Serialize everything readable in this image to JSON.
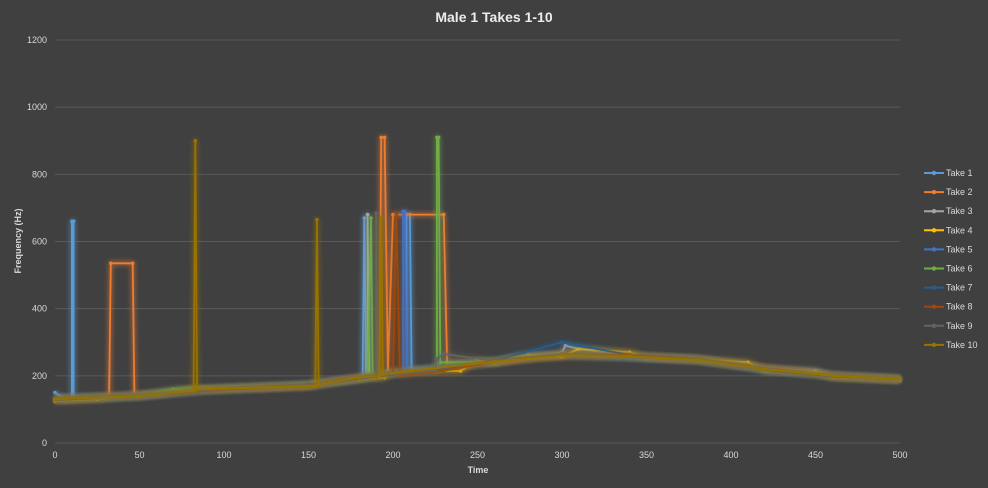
{
  "chart_data": {
    "type": "line",
    "title": "Male 1 Takes 1-10",
    "xlabel": "Time",
    "ylabel": "Frequency (Hz)",
    "xlim": [
      0,
      500
    ],
    "ylim": [
      0,
      1200
    ],
    "xticks": [
      "0",
      "50",
      "100",
      "150",
      "200",
      "250",
      "300",
      "350",
      "400",
      "450",
      "500"
    ],
    "yticks": [
      "0",
      "200",
      "400",
      "600",
      "800",
      "1000",
      "1200"
    ],
    "grid": "horizontal",
    "legend_position": "right",
    "series": [
      {
        "name": "Take 1",
        "color": "#5b9bd5",
        "points": [
          [
            0,
            150
          ],
          [
            5,
            135
          ],
          [
            10,
            132
          ],
          [
            10,
            660
          ],
          [
            11,
            660
          ],
          [
            11,
            135
          ],
          [
            30,
            135
          ],
          [
            50,
            140
          ],
          [
            80,
            158
          ],
          [
            120,
            165
          ],
          [
            150,
            175
          ],
          [
            153,
            180
          ],
          [
            175,
            190
          ],
          [
            182,
            195
          ],
          [
            182,
            200
          ],
          [
            183,
            670
          ],
          [
            184,
            200
          ],
          [
            200,
            210
          ],
          [
            208,
            210
          ],
          [
            208,
            680
          ],
          [
            210,
            680
          ],
          [
            211,
            215
          ],
          [
            260,
            240
          ],
          [
            280,
            260
          ],
          [
            300,
            262
          ],
          [
            340,
            255
          ],
          [
            380,
            250
          ],
          [
            420,
            220
          ],
          [
            450,
            215
          ],
          [
            460,
            200
          ],
          [
            500,
            190
          ]
        ]
      },
      {
        "name": "Take 2",
        "color": "#ed7d31",
        "points": [
          [
            0,
            130
          ],
          [
            20,
            135
          ],
          [
            32,
            140
          ],
          [
            33,
            535
          ],
          [
            46,
            535
          ],
          [
            47,
            140
          ],
          [
            80,
            155
          ],
          [
            150,
            170
          ],
          [
            180,
            195
          ],
          [
            192,
            200
          ],
          [
            193,
            910
          ],
          [
            195,
            910
          ],
          [
            197,
            215
          ],
          [
            200,
            680
          ],
          [
            230,
            680
          ],
          [
            232,
            240
          ],
          [
            260,
            240
          ],
          [
            300,
            260
          ],
          [
            340,
            260
          ],
          [
            380,
            250
          ],
          [
            420,
            225
          ],
          [
            450,
            212
          ],
          [
            460,
            200
          ],
          [
            500,
            190
          ]
        ]
      },
      {
        "name": "Take 3",
        "color": "#a5a5a5",
        "points": [
          [
            0,
            132
          ],
          [
            50,
            142
          ],
          [
            100,
            162
          ],
          [
            150,
            172
          ],
          [
            180,
            190
          ],
          [
            185,
            200
          ],
          [
            185,
            680
          ],
          [
            186,
            200
          ],
          [
            210,
            215
          ],
          [
            260,
            240
          ],
          [
            300,
            270
          ],
          [
            302,
            290
          ],
          [
            310,
            280
          ],
          [
            340,
            260
          ],
          [
            380,
            245
          ],
          [
            420,
            220
          ],
          [
            460,
            200
          ],
          [
            500,
            190
          ]
        ]
      },
      {
        "name": "Take 4",
        "color": "#ffc000",
        "points": [
          [
            0,
            125
          ],
          [
            25,
            130
          ],
          [
            40,
            138
          ],
          [
            60,
            145
          ],
          [
            80,
            160
          ],
          [
            100,
            162
          ],
          [
            150,
            170
          ],
          [
            160,
            180
          ],
          [
            180,
            190
          ],
          [
            195,
            195
          ],
          [
            200,
            212
          ],
          [
            240,
            215
          ],
          [
            250,
            245
          ],
          [
            260,
            240
          ],
          [
            270,
            255
          ],
          [
            280,
            262
          ],
          [
            300,
            258
          ],
          [
            310,
            280
          ],
          [
            340,
            270
          ],
          [
            350,
            255
          ],
          [
            380,
            250
          ],
          [
            410,
            240
          ],
          [
            420,
            215
          ],
          [
            450,
            210
          ],
          [
            460,
            195
          ],
          [
            500,
            188
          ]
        ]
      },
      {
        "name": "Take 5",
        "color": "#4472c4",
        "points": [
          [
            0,
            130
          ],
          [
            50,
            140
          ],
          [
            100,
            162
          ],
          [
            150,
            170
          ],
          [
            190,
            200
          ],
          [
            200,
            215
          ],
          [
            206,
            215
          ],
          [
            206,
            690
          ],
          [
            207,
            690
          ],
          [
            208,
            215
          ],
          [
            250,
            240
          ],
          [
            300,
            265
          ],
          [
            340,
            255
          ],
          [
            380,
            250
          ],
          [
            420,
            218
          ],
          [
            460,
            200
          ],
          [
            500,
            190
          ]
        ]
      },
      {
        "name": "Take 6",
        "color": "#70ad47",
        "points": [
          [
            0,
            132
          ],
          [
            50,
            142
          ],
          [
            70,
            160
          ],
          [
            100,
            162
          ],
          [
            150,
            172
          ],
          [
            185,
            195
          ],
          [
            187,
            670
          ],
          [
            188,
            200
          ],
          [
            215,
            215
          ],
          [
            226,
            215
          ],
          [
            226,
            910
          ],
          [
            227,
            910
          ],
          [
            228,
            240
          ],
          [
            260,
            242
          ],
          [
            300,
            262
          ],
          [
            340,
            258
          ],
          [
            380,
            248
          ],
          [
            420,
            220
          ],
          [
            460,
            200
          ],
          [
            500,
            192
          ]
        ]
      },
      {
        "name": "Take 7",
        "color": "#255e91",
        "points": [
          [
            0,
            128
          ],
          [
            50,
            140
          ],
          [
            100,
            160
          ],
          [
            150,
            172
          ],
          [
            190,
            198
          ],
          [
            230,
            220
          ],
          [
            260,
            245
          ],
          [
            300,
            300
          ],
          [
            310,
            290
          ],
          [
            340,
            262
          ],
          [
            380,
            250
          ],
          [
            410,
            228
          ],
          [
            420,
            218
          ],
          [
            460,
            198
          ],
          [
            500,
            190
          ]
        ]
      },
      {
        "name": "Take 8",
        "color": "#9e480e",
        "points": [
          [
            0,
            130
          ],
          [
            50,
            142
          ],
          [
            100,
            160
          ],
          [
            150,
            170
          ],
          [
            180,
            195
          ],
          [
            200,
            205
          ],
          [
            202,
            680
          ],
          [
            204,
            200
          ],
          [
            230,
            215
          ],
          [
            260,
            242
          ],
          [
            300,
            262
          ],
          [
            340,
            262
          ],
          [
            380,
            248
          ],
          [
            420,
            222
          ],
          [
            460,
            200
          ],
          [
            500,
            190
          ]
        ]
      },
      {
        "name": "Take 9",
        "color": "#636363",
        "points": [
          [
            0,
            132
          ],
          [
            50,
            142
          ],
          [
            100,
            162
          ],
          [
            150,
            175
          ],
          [
            180,
            195
          ],
          [
            190,
            200
          ],
          [
            190,
            685
          ],
          [
            191,
            200
          ],
          [
            225,
            218
          ],
          [
            226,
            250
          ],
          [
            230,
            265
          ],
          [
            260,
            245
          ],
          [
            300,
            265
          ],
          [
            340,
            258
          ],
          [
            380,
            248
          ],
          [
            420,
            222
          ],
          [
            460,
            200
          ],
          [
            500,
            190
          ]
        ]
      },
      {
        "name": "Take 10",
        "color": "#997300",
        "points": [
          [
            0,
            130
          ],
          [
            50,
            140
          ],
          [
            82,
            155
          ],
          [
            83,
            900
          ],
          [
            84,
            160
          ],
          [
            100,
            162
          ],
          [
            154,
            170
          ],
          [
            155,
            665
          ],
          [
            156,
            175
          ],
          [
            180,
            195
          ],
          [
            192,
            200
          ],
          [
            193,
            670
          ],
          [
            194,
            205
          ],
          [
            210,
            215
          ],
          [
            260,
            242
          ],
          [
            300,
            262
          ],
          [
            340,
            258
          ],
          [
            380,
            248
          ],
          [
            420,
            220
          ],
          [
            460,
            200
          ],
          [
            500,
            190
          ]
        ]
      }
    ]
  }
}
